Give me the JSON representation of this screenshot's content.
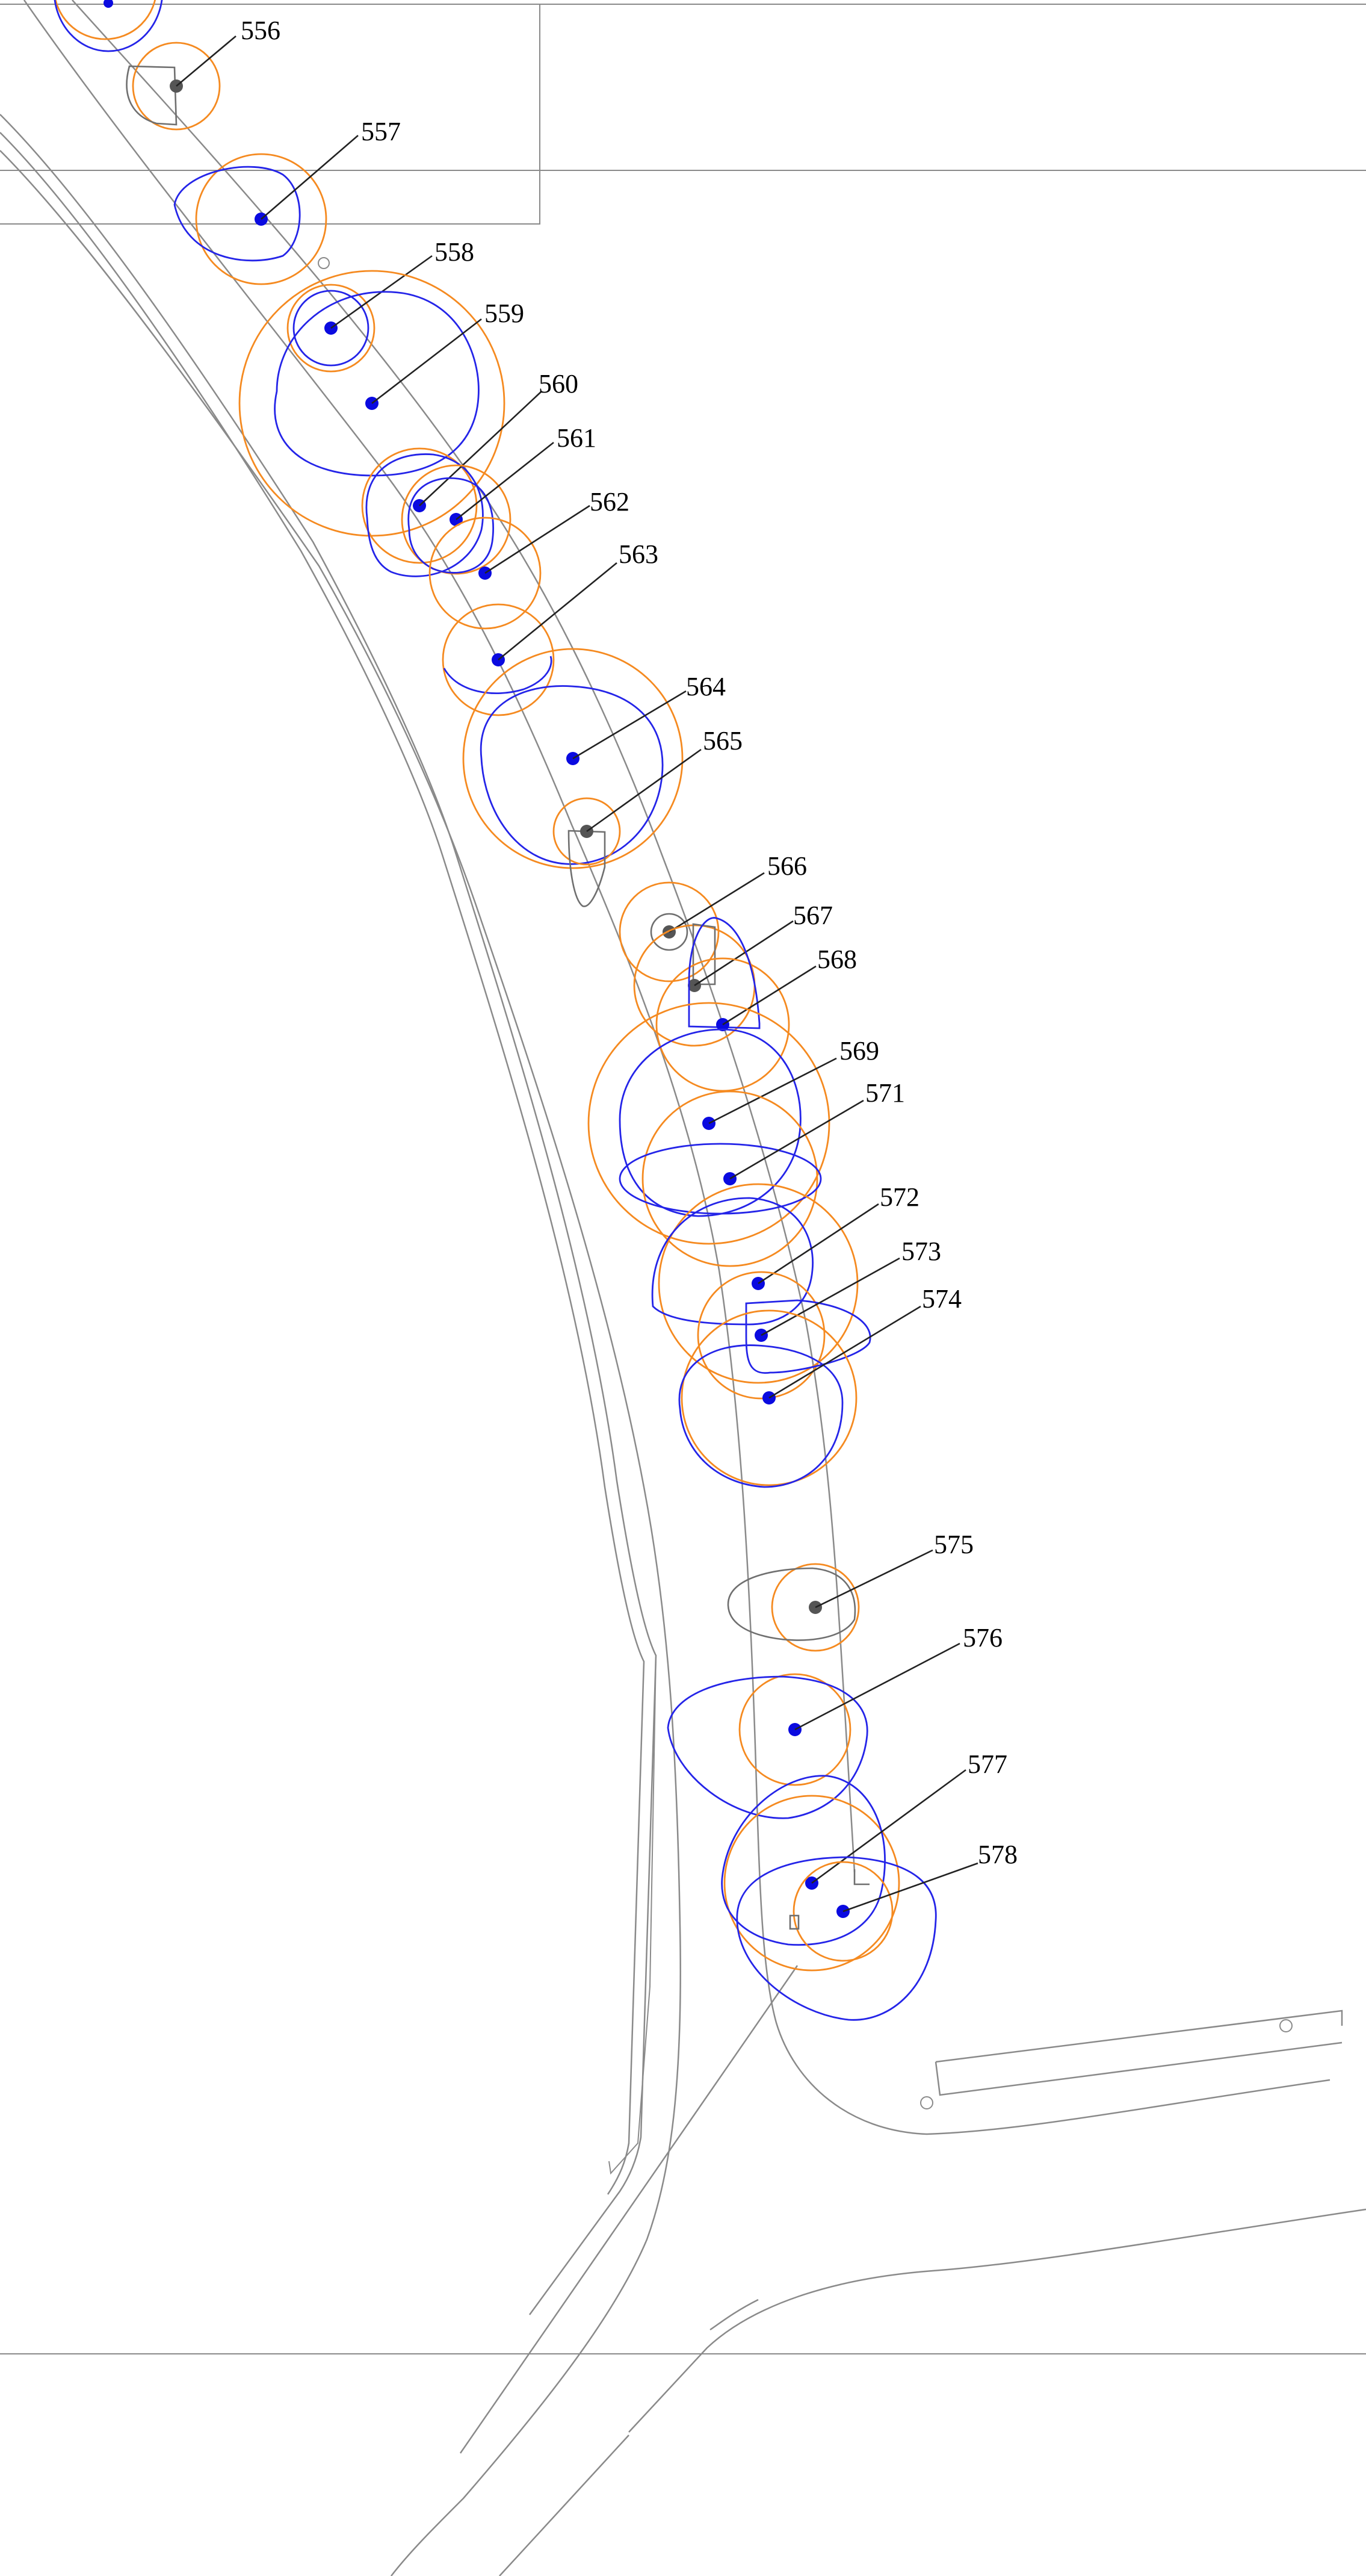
{
  "trees": [
    {
      "number": "556",
      "marker": "grey"
    },
    {
      "number": "557",
      "marker": "blue"
    },
    {
      "number": "558",
      "marker": "blue"
    },
    {
      "number": "559",
      "marker": "blue"
    },
    {
      "number": "560",
      "marker": "blue"
    },
    {
      "number": "561",
      "marker": "blue"
    },
    {
      "number": "562",
      "marker": "blue"
    },
    {
      "number": "563",
      "marker": "blue"
    },
    {
      "number": "564",
      "marker": "blue"
    },
    {
      "number": "565",
      "marker": "grey"
    },
    {
      "number": "566",
      "marker": "grey"
    },
    {
      "number": "567",
      "marker": "grey"
    },
    {
      "number": "568",
      "marker": "blue"
    },
    {
      "number": "569",
      "marker": "blue"
    },
    {
      "number": "571",
      "marker": "blue"
    },
    {
      "number": "572",
      "marker": "blue"
    },
    {
      "number": "573",
      "marker": "blue"
    },
    {
      "number": "574",
      "marker": "blue"
    },
    {
      "number": "575",
      "marker": "grey"
    },
    {
      "number": "576",
      "marker": "blue"
    },
    {
      "number": "577",
      "marker": "blue"
    },
    {
      "number": "578",
      "marker": "blue"
    }
  ],
  "colors": {
    "crown_circle": "#f58a20",
    "root_zone": "#2424e8",
    "marker_blue": "#0a0ae0",
    "marker_grey": "#555555",
    "linework": "#8a8a8a"
  }
}
